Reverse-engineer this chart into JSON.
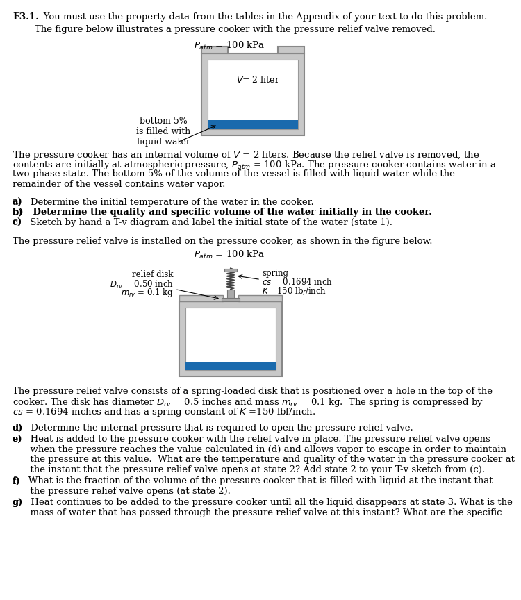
{
  "bg_color": "#ffffff",
  "text_color": "#000000",
  "liquid_color": "#1a6aad",
  "vessel_fill": "#cccccc",
  "vessel_inner": "#ffffff",
  "spring_color": "#444444",
  "title_bold": "E3.1.",
  "title_rest": "   You must use the property data from the tables in the Appendix of your text to do this problem.\nThe figure below illustrates a pressure cooker with the pressure relief valve removed.",
  "patm1": "$P_{atm}$ = 100 kPa",
  "v2liter": "$V$= 2 liter",
  "liq_label": "bottom 5%\nis filled with\nliquid water",
  "para1_lines": [
    "The pressure cooker has an internal volume of $V$ = 2 liters. Because the relief valve is removed, the",
    "contents are initially at atmospheric pressure, $P_{atm}$ = 100 kPa. The pressure cooker contains water in a",
    "two-phase state. The bottom 5% of the volume of the vessel is filled with liquid water while the",
    "remainder of the vessel contains water vapor."
  ],
  "q_a": "a)   Determine the initial temperature of the water in the cooker.",
  "q_b": "b)   Determine the quality and specific volume of the water initially in the cooker.",
  "q_c": "c)   Sketch by hand a T-v diagram and label the initial state of the water (state 1).",
  "para2": "The pressure relief valve is installed on the pressure cooker, as shown in the figure below.",
  "patm2": "$P_{atm}$ = 100 kPa",
  "relief_label_lines": [
    "relief disk",
    "$D_{rv}$ = 0.50 inch",
    "$m_{rv}$ = 0.1 kg"
  ],
  "spring_label_lines": [
    "spring",
    "$cs$ = 0.1694 inch",
    "$K$= 150 lb$_f$/inch"
  ],
  "para3_lines": [
    "The pressure relief valve consists of a spring-loaded disk that is positioned over a hole in the top of the",
    "cooker. The disk has diameter $D_{rv}$ = 0.5 inches and mass $m_{rv}$ = 0.1 kg.  The spring is compressed by",
    "$cs$ = 0.1694 inches and has a spring constant of $K$ =150 lbf/inch."
  ],
  "q_d": "d)   Determine the internal pressure that is required to open the pressure relief valve.",
  "q_e_lines": [
    "e)   Heat is added to the pressure cooker with the relief valve in place. The pressure relief valve opens",
    "      when the pressure reaches the value calculated in (d) and allows vapor to escape in order to maintain",
    "      the pressure at this value.  What are the temperature and quality of the water in the pressure cooker at",
    "      the instant that the pressure relief valve opens at state 2? Add state 2 to your T-v sketch from (c)."
  ],
  "q_f_lines": [
    "f)   What is the fraction of the volume of the pressure cooker that is filled with liquid at the instant that",
    "      the pressure relief valve opens (at state 2)."
  ],
  "q_g_lines": [
    "g)   Heat continues to be added to the pressure cooker until all the liquid disappears at state 3. What is the",
    "      mass of water that has passed through the pressure relief valve at this instant? What are the specific"
  ]
}
